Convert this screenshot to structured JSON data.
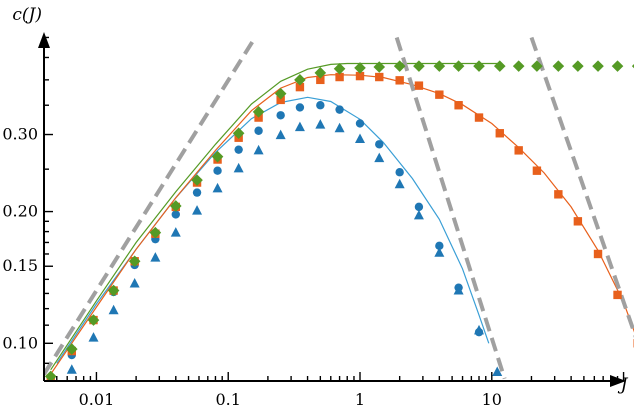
{
  "chart_data": {
    "type": "scatter",
    "title": "",
    "xlabel": "J",
    "ylabel": "c(J)",
    "xscale": "log",
    "yscale": "log",
    "xlim": [
      0.004,
      120
    ],
    "ylim": [
      0.082,
      0.52
    ],
    "x_ticks": [
      {
        "value": 0.01,
        "label": "0.01"
      },
      {
        "value": 0.1,
        "label": "0.1"
      },
      {
        "value": 1,
        "label": "1"
      },
      {
        "value": 10,
        "label": "10"
      }
    ],
    "y_ticks": [
      {
        "value": 0.1,
        "label": "0.10"
      },
      {
        "value": 0.15,
        "label": "0.15"
      },
      {
        "value": 0.2,
        "label": "0.20"
      },
      {
        "value": 0.3,
        "label": "0.30"
      }
    ],
    "grid": false,
    "legend": "none",
    "series": [
      {
        "marker": "circle",
        "color": "#1f77b4",
        "points": [
          [
            0.0065,
            0.094
          ],
          [
            0.0095,
            0.113
          ],
          [
            0.0135,
            0.131
          ],
          [
            0.0195,
            0.151
          ],
          [
            0.028,
            0.173
          ],
          [
            0.04,
            0.197
          ],
          [
            0.058,
            0.221
          ],
          [
            0.083,
            0.248
          ],
          [
            0.12,
            0.277
          ],
          [
            0.17,
            0.306
          ],
          [
            0.25,
            0.332
          ],
          [
            0.35,
            0.346
          ],
          [
            0.5,
            0.35
          ],
          [
            0.7,
            0.342
          ],
          [
            1.0,
            0.318
          ],
          [
            1.4,
            0.285
          ],
          [
            2.0,
            0.246
          ],
          [
            2.8,
            0.205
          ],
          [
            4.0,
            0.167
          ],
          [
            5.6,
            0.134
          ],
          [
            8.0,
            0.106
          ]
        ]
      },
      {
        "marker": "triangle",
        "color": "#1f77b4",
        "points": [
          [
            0.0065,
            0.087
          ],
          [
            0.0095,
            0.103
          ],
          [
            0.0135,
            0.119
          ],
          [
            0.0195,
            0.137
          ],
          [
            0.028,
            0.157
          ],
          [
            0.04,
            0.179
          ],
          [
            0.058,
            0.201
          ],
          [
            0.083,
            0.226
          ],
          [
            0.12,
            0.251
          ],
          [
            0.17,
            0.276
          ],
          [
            0.25,
            0.299
          ],
          [
            0.35,
            0.312
          ],
          [
            0.5,
            0.316
          ],
          [
            0.7,
            0.31
          ],
          [
            1.0,
            0.293
          ],
          [
            1.4,
            0.265
          ],
          [
            2.0,
            0.231
          ],
          [
            2.8,
            0.196
          ],
          [
            4.0,
            0.161
          ],
          [
            5.6,
            0.132
          ],
          [
            8.0,
            0.107
          ],
          [
            11.0,
            0.086
          ]
        ]
      },
      {
        "marker": "square",
        "color": "#e8601c",
        "points": [
          [
            0.0045,
            0.083
          ],
          [
            0.0065,
            0.096
          ],
          [
            0.0095,
            0.113
          ],
          [
            0.0135,
            0.132
          ],
          [
            0.0195,
            0.154
          ],
          [
            0.028,
            0.178
          ],
          [
            0.04,
            0.205
          ],
          [
            0.058,
            0.233
          ],
          [
            0.083,
            0.263
          ],
          [
            0.12,
            0.295
          ],
          [
            0.17,
            0.328
          ],
          [
            0.25,
            0.36
          ],
          [
            0.35,
            0.385
          ],
          [
            0.5,
            0.4
          ],
          [
            0.7,
            0.406
          ],
          [
            1.0,
            0.408
          ],
          [
            1.4,
            0.406
          ],
          [
            2.0,
            0.399
          ],
          [
            2.8,
            0.388
          ],
          [
            4.0,
            0.37
          ],
          [
            5.6,
            0.35
          ],
          [
            8.0,
            0.328
          ],
          [
            11.5,
            0.302
          ],
          [
            16,
            0.276
          ],
          [
            22,
            0.248
          ],
          [
            32,
            0.219
          ],
          [
            45,
            0.19
          ],
          [
            64,
            0.16
          ],
          [
            90,
            0.129
          ],
          [
            128,
            0.1
          ],
          [
            150,
            0.088
          ]
        ]
      },
      {
        "marker": "diamond",
        "color": "#559a25",
        "points": [
          [
            0.0045,
            0.084
          ],
          [
            0.0065,
            0.097
          ],
          [
            0.0095,
            0.113
          ],
          [
            0.0135,
            0.132
          ],
          [
            0.0195,
            0.154
          ],
          [
            0.028,
            0.179
          ],
          [
            0.04,
            0.206
          ],
          [
            0.058,
            0.236
          ],
          [
            0.083,
            0.267
          ],
          [
            0.12,
            0.302
          ],
          [
            0.17,
            0.338
          ],
          [
            0.25,
            0.372
          ],
          [
            0.35,
            0.4
          ],
          [
            0.5,
            0.415
          ],
          [
            0.7,
            0.424
          ],
          [
            1.0,
            0.426
          ],
          [
            1.4,
            0.428
          ],
          [
            2.0,
            0.43
          ],
          [
            2.8,
            0.43
          ],
          [
            4.0,
            0.43
          ],
          [
            5.6,
            0.43
          ],
          [
            8.0,
            0.43
          ],
          [
            11.5,
            0.43
          ],
          [
            16,
            0.43
          ],
          [
            22,
            0.43
          ],
          [
            32,
            0.43
          ],
          [
            45,
            0.43
          ],
          [
            64,
            0.43
          ],
          [
            90,
            0.43
          ],
          [
            128,
            0.43
          ],
          [
            180,
            0.43
          ]
        ]
      }
    ],
    "curves": [
      {
        "color": "#3a9fd6",
        "width": 1.2,
        "dash": false,
        "points": [
          [
            0.005,
            0.09
          ],
          [
            0.01,
            0.123
          ],
          [
            0.02,
            0.164
          ],
          [
            0.04,
            0.215
          ],
          [
            0.08,
            0.273
          ],
          [
            0.15,
            0.326
          ],
          [
            0.25,
            0.355
          ],
          [
            0.4,
            0.365
          ],
          [
            0.6,
            0.357
          ],
          [
            1.0,
            0.325
          ],
          [
            1.5,
            0.288
          ],
          [
            2.5,
            0.238
          ],
          [
            4.0,
            0.192
          ],
          [
            6.0,
            0.148
          ],
          [
            8.0,
            0.116
          ],
          [
            9.5,
            0.1
          ]
        ]
      },
      {
        "color": "#e8601c",
        "width": 1.2,
        "dash": false,
        "points": [
          [
            0.0045,
            0.085
          ],
          [
            0.01,
            0.121
          ],
          [
            0.02,
            0.164
          ],
          [
            0.04,
            0.215
          ],
          [
            0.08,
            0.276
          ],
          [
            0.15,
            0.34
          ],
          [
            0.25,
            0.383
          ],
          [
            0.4,
            0.405
          ],
          [
            0.6,
            0.411
          ],
          [
            1.0,
            0.41
          ],
          [
            1.5,
            0.405
          ],
          [
            2.5,
            0.39
          ],
          [
            4.0,
            0.372
          ],
          [
            6.0,
            0.351
          ],
          [
            10,
            0.318
          ],
          [
            16,
            0.28
          ],
          [
            25,
            0.245
          ],
          [
            40,
            0.205
          ],
          [
            64,
            0.163
          ],
          [
            100,
            0.124
          ],
          [
            130,
            0.1
          ],
          [
            160,
            0.085
          ]
        ]
      },
      {
        "color": "#559a25",
        "width": 1.2,
        "dash": false,
        "points": [
          [
            0.0045,
            0.087
          ],
          [
            0.01,
            0.125
          ],
          [
            0.02,
            0.17
          ],
          [
            0.04,
            0.222
          ],
          [
            0.08,
            0.285
          ],
          [
            0.15,
            0.352
          ],
          [
            0.25,
            0.397
          ],
          [
            0.4,
            0.423
          ],
          [
            0.6,
            0.434
          ],
          [
            0.8,
            0.436
          ],
          [
            1.0,
            0.436
          ],
          [
            1.5,
            0.436
          ],
          [
            2.5,
            0.436
          ],
          [
            4.0,
            0.436
          ],
          [
            7.0,
            0.436
          ],
          [
            11,
            0.436
          ]
        ]
      },
      {
        "color": "#a0a0a0",
        "width": 4,
        "dash": true,
        "points": [
          [
            0.004,
            0.085
          ],
          [
            0.16,
            0.5
          ]
        ]
      },
      {
        "color": "#a0a0a0",
        "width": 4,
        "dash": true,
        "points": [
          [
            1.9,
            0.5
          ],
          [
            12.5,
            0.083
          ]
        ]
      },
      {
        "color": "#a0a0a0",
        "width": 4,
        "dash": true,
        "points": [
          [
            20,
            0.5
          ],
          [
            140,
            0.093
          ]
        ]
      }
    ]
  }
}
